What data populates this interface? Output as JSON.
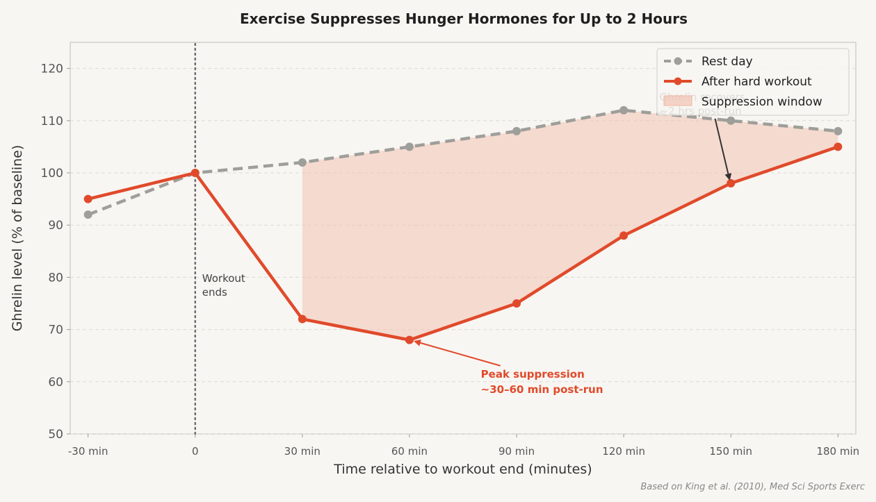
{
  "chart_data": {
    "type": "line",
    "title": "Exercise Suppresses Hunger Hormones for Up to 2 Hours",
    "xlabel": "Time relative to workout end (minutes)",
    "ylabel": "Ghrelin level (% of baseline)",
    "x": [
      -30,
      0,
      30,
      60,
      90,
      120,
      150,
      180
    ],
    "x_tick_labels": [
      "-30 min",
      "0",
      "30 min",
      "60 min",
      "90 min",
      "120 min",
      "150 min",
      "180 min"
    ],
    "xlim": [
      -35,
      185
    ],
    "ylim": [
      50,
      125
    ],
    "y_ticks": [
      50,
      60,
      70,
      80,
      90,
      100,
      110,
      120
    ],
    "grid": "horizontal dashed",
    "legend_position": "top-right",
    "series": [
      {
        "name": "Rest day",
        "values": [
          92,
          100,
          102,
          105,
          108,
          112,
          110,
          108
        ],
        "color": "#9e9e9a",
        "style": "dashed"
      },
      {
        "name": "After hard workout",
        "values": [
          95,
          100,
          72,
          68,
          75,
          88,
          98,
          105
        ],
        "color": "#e04a2b",
        "style": "solid"
      }
    ],
    "fill_region": {
      "name": "Suppression window",
      "x_start": 30,
      "x_end": 180,
      "color": "#f2c3b3"
    },
    "annotations": {
      "vline": {
        "x": 0,
        "line1": "Workout",
        "line2": "ends"
      },
      "peak": {
        "line1": "Peak suppression",
        "line2": "~30–60 min post-run",
        "arrow_to_x": 60,
        "arrow_to_y": 68,
        "text_x": 80,
        "text_y": 62
      },
      "recover": {
        "line1": "Ghrelin recovers",
        "line2": "~2 hrs post-run",
        "arrow_to_x": 150,
        "arrow_to_y": 98,
        "text_x": 130,
        "text_y": 112
      }
    },
    "source": "Based on King et al. (2010), Med Sci Sports Exerc"
  }
}
